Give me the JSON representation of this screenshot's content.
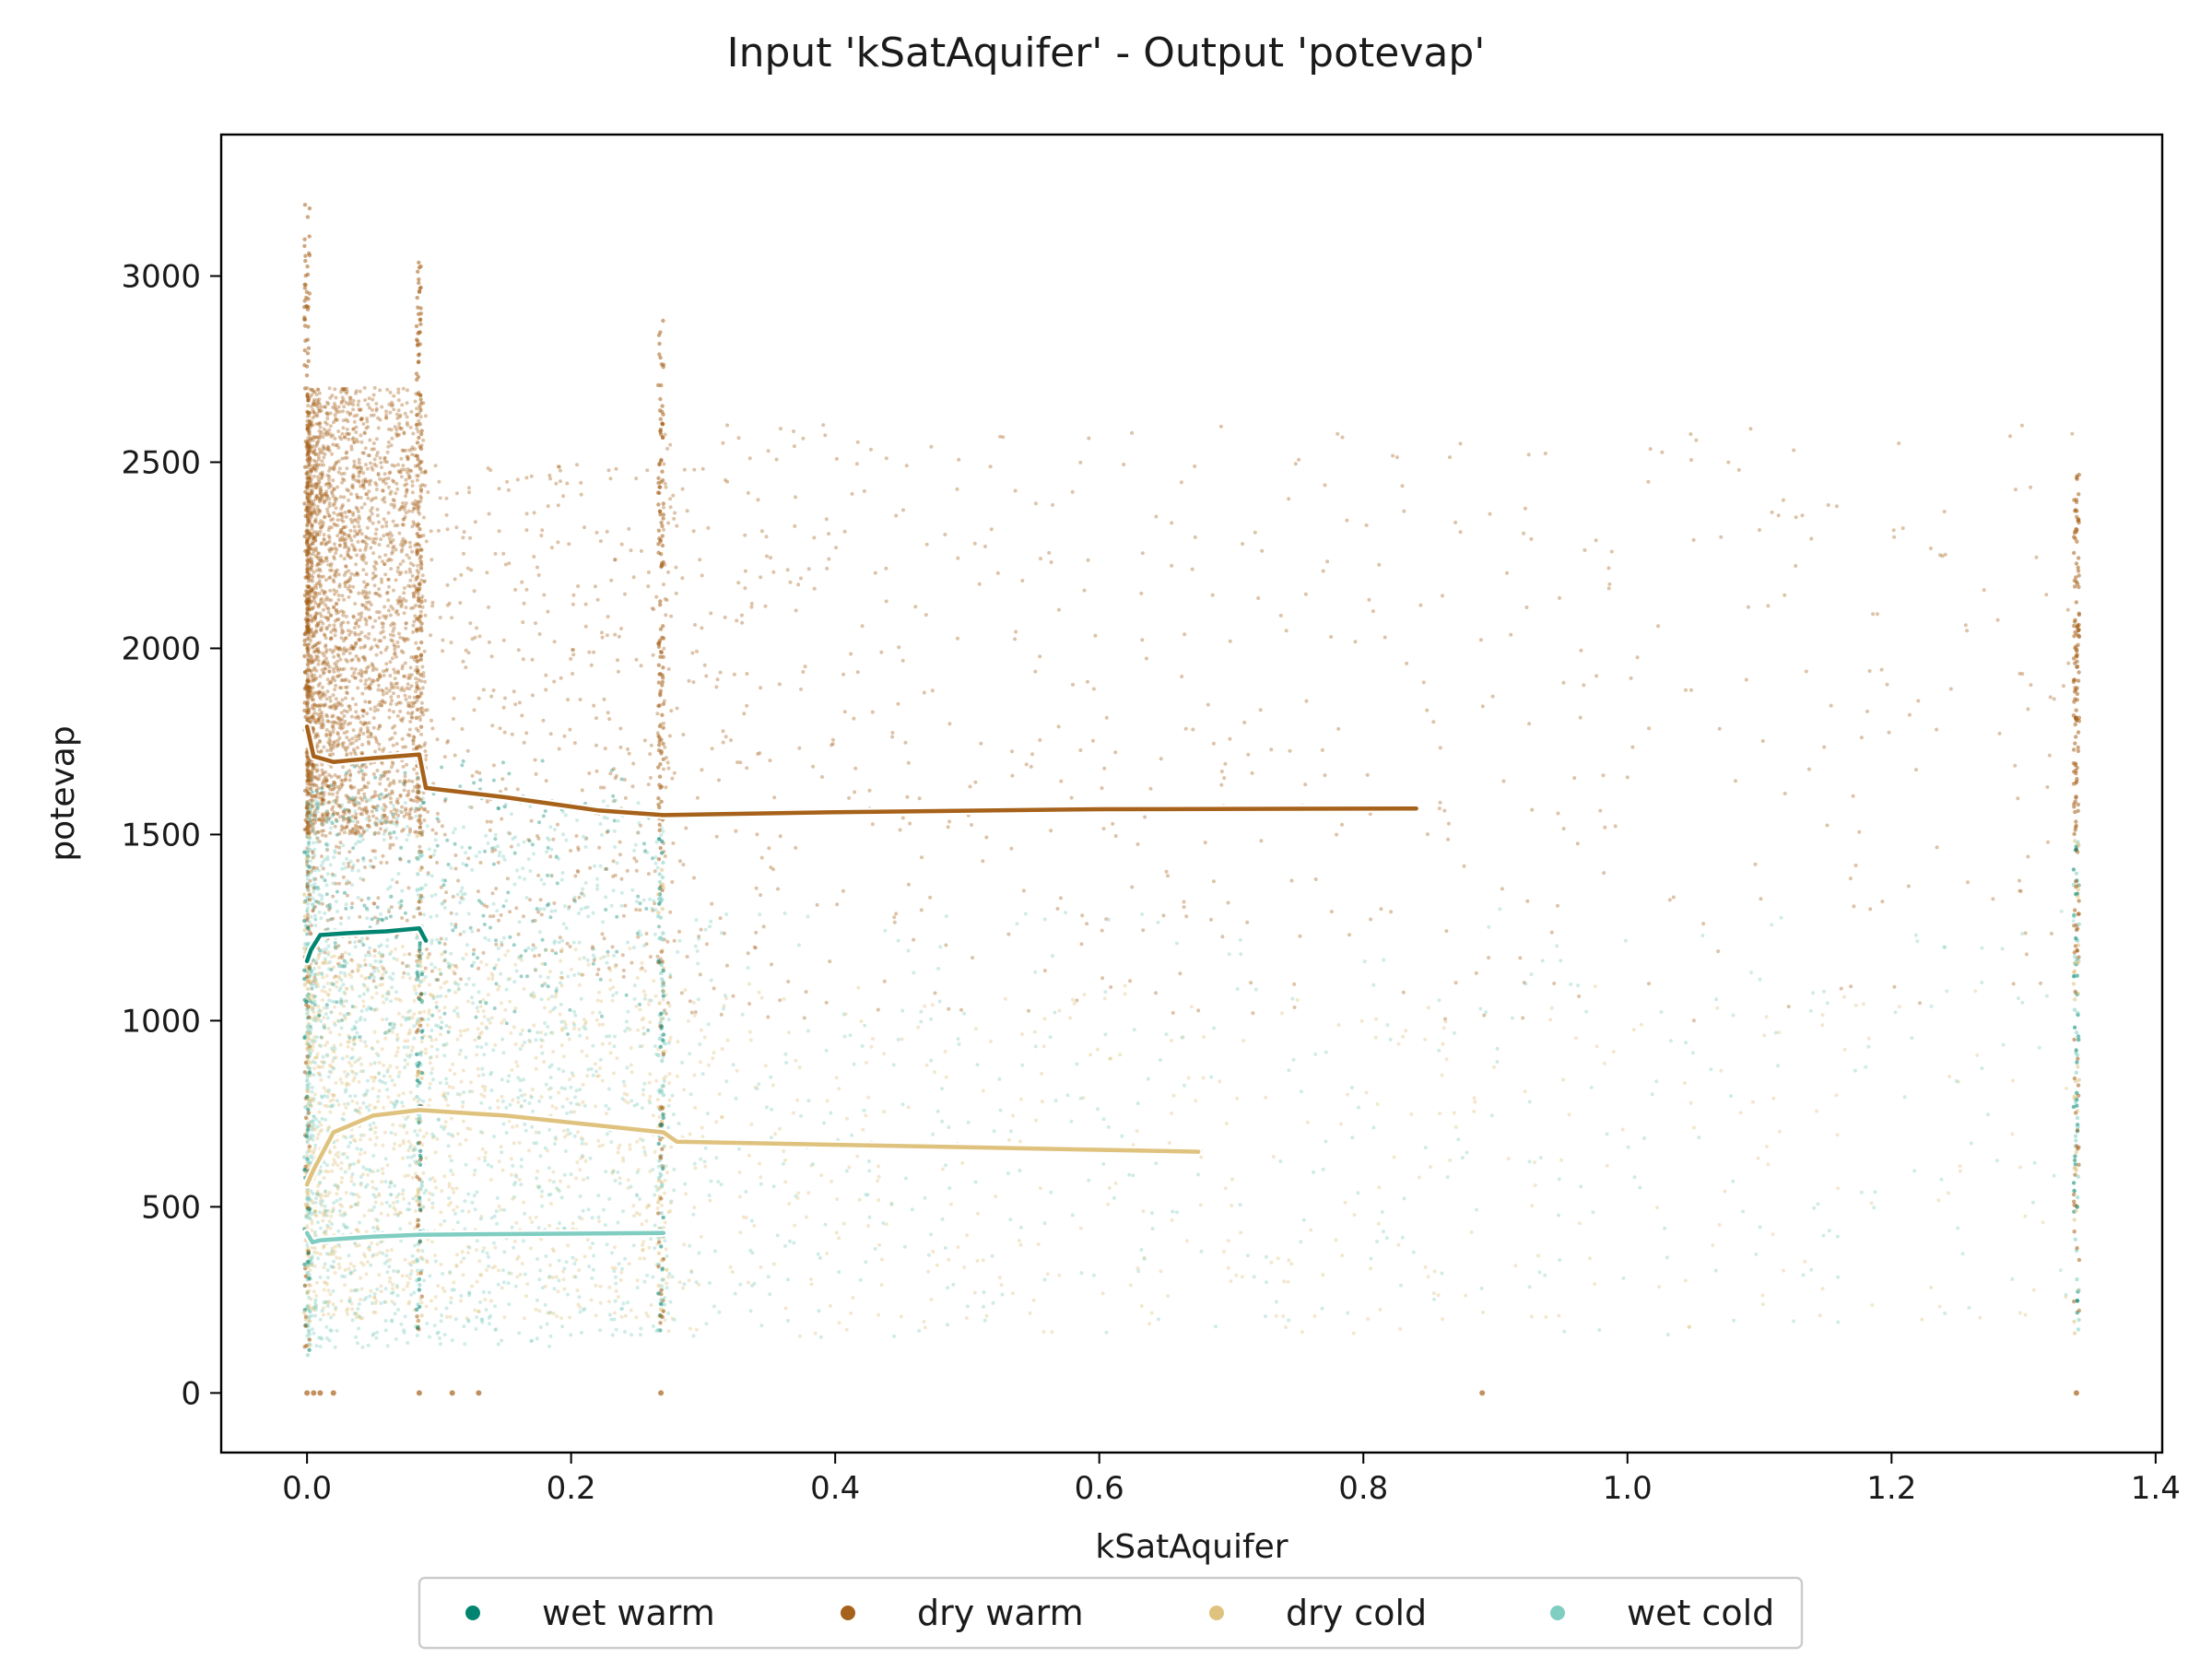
{
  "chart_data": {
    "type": "scatter",
    "title": "Input 'kSatAquifer' - Output 'potevap'",
    "xlabel": "kSatAquifer",
    "ylabel": "potevap",
    "xlim": [
      -0.065,
      1.405
    ],
    "ylim": [
      -160,
      3380
    ],
    "xticks": [
      0.0,
      0.2,
      0.4,
      0.6,
      0.8,
      1.0,
      1.2,
      1.4
    ],
    "xtick_labels": [
      "0.0",
      "0.2",
      "0.4",
      "0.6",
      "0.8",
      "1.0",
      "1.2",
      "1.4"
    ],
    "yticks": [
      0,
      500,
      1000,
      1500,
      2000,
      2500,
      3000
    ],
    "ytick_labels": [
      "0",
      "500",
      "1000",
      "1500",
      "2000",
      "2500",
      "3000"
    ],
    "grid": false,
    "legend_position": "bottom-center",
    "series": [
      {
        "name": "wet warm",
        "color": "#018571",
        "trend": [
          [
            0.0,
            1160
          ],
          [
            0.003,
            1190
          ],
          [
            0.01,
            1230
          ],
          [
            0.03,
            1235
          ],
          [
            0.06,
            1240
          ],
          [
            0.085,
            1248
          ],
          [
            0.09,
            1215
          ]
        ],
        "cloud": [
          {
            "x": [
              0.0,
              0.27
            ],
            "y": [
              950,
              1700
            ],
            "n": 260
          }
        ]
      },
      {
        "name": "dry warm",
        "color": "#a6611a",
        "trend": [
          [
            0.0,
            1790
          ],
          [
            0.005,
            1710
          ],
          [
            0.02,
            1695
          ],
          [
            0.05,
            1705
          ],
          [
            0.085,
            1715
          ],
          [
            0.09,
            1625
          ],
          [
            0.15,
            1600
          ],
          [
            0.22,
            1565
          ],
          [
            0.27,
            1552
          ],
          [
            0.4,
            1560
          ],
          [
            0.6,
            1568
          ],
          [
            0.84,
            1570
          ]
        ],
        "cloud": [
          {
            "x": [
              0.0,
              0.09
            ],
            "y": [
              1500,
              2700
            ],
            "n": 2400
          },
          {
            "x": [
              0.0,
              0.27
            ],
            "y": [
              1100,
              2500
            ],
            "n": 900
          },
          {
            "x": [
              0.27,
              1.34
            ],
            "y": [
              1000,
              2600
            ],
            "n": 650
          }
        ]
      },
      {
        "name": "dry cold",
        "color": "#dfc27d",
        "trend": [
          [
            0.0,
            560
          ],
          [
            0.005,
            600
          ],
          [
            0.02,
            700
          ],
          [
            0.05,
            745
          ],
          [
            0.085,
            760
          ],
          [
            0.15,
            745
          ],
          [
            0.27,
            700
          ],
          [
            0.28,
            675
          ],
          [
            0.5,
            660
          ],
          [
            0.675,
            648
          ]
        ],
        "cloud": [
          {
            "x": [
              0.0,
              0.27
            ],
            "y": [
              200,
              1200
            ],
            "n": 1300
          },
          {
            "x": [
              0.27,
              1.34
            ],
            "y": [
              150,
              1100
            ],
            "n": 450
          }
        ]
      },
      {
        "name": "wet cold",
        "color": "#80cdc1",
        "trend": [
          [
            0.0,
            430
          ],
          [
            0.004,
            405
          ],
          [
            0.01,
            410
          ],
          [
            0.05,
            420
          ],
          [
            0.085,
            425
          ],
          [
            0.27,
            430
          ]
        ],
        "cloud": [
          {
            "x": [
              0.0,
              0.27
            ],
            "y": [
              120,
              1600
            ],
            "n": 1500
          },
          {
            "x": [
              0.27,
              1.34
            ],
            "y": [
              150,
              1300
            ],
            "n": 450
          }
        ]
      }
    ],
    "vertical_bands": [
      {
        "x": 0.0,
        "ymin": 90,
        "ymax": 3220
      },
      {
        "x": 0.085,
        "ymin": 150,
        "ymax": 3050
      },
      {
        "x": 0.268,
        "ymin": 160,
        "ymax": 2880
      },
      {
        "x": 1.34,
        "ymin": 150,
        "ymax": 2470
      }
    ]
  }
}
